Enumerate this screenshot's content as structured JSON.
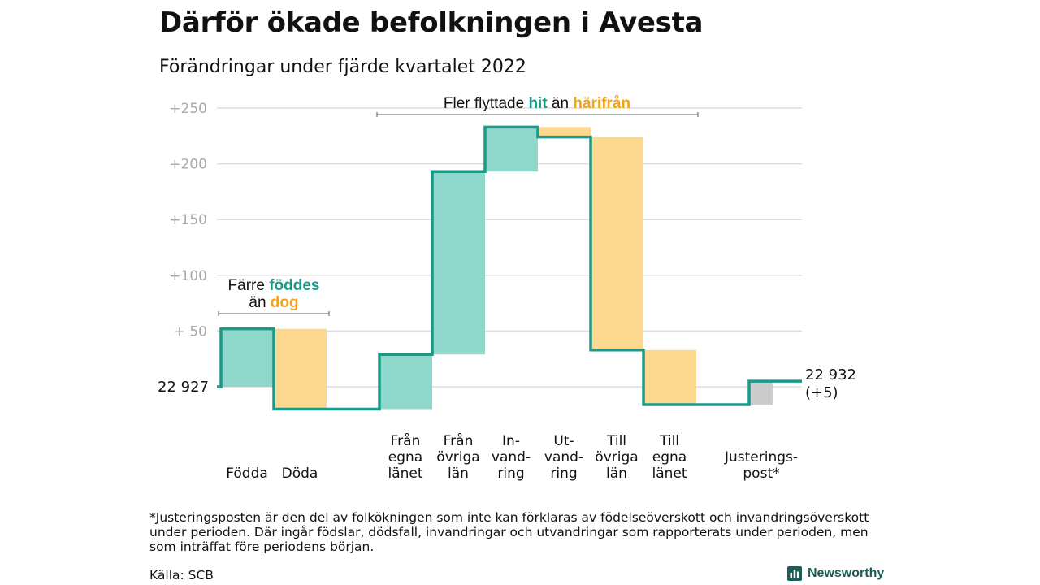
{
  "title": "Därför ökade befolkningen i Avesta",
  "subtitle": "Förändringar under fjärde kvartalet 2022",
  "colors": {
    "inflow": "#8fd6cb",
    "outflow": "#fcd88e",
    "adjust": "#cccccc",
    "line": "#1a9a88",
    "teal_text": "#1a9a88",
    "orange_text": "#f2a31a",
    "grid": "#dddddd",
    "tick": "#a8a8a8"
  },
  "chart_data": {
    "type": "waterfall",
    "start": {
      "label": "22 927",
      "value": 22927
    },
    "end": {
      "label_line1": "22 932",
      "label_line2": "(+5)",
      "value": 22932
    },
    "y_ticks": [
      "+250",
      "+200",
      "+150",
      "+100",
      "+ 50"
    ],
    "y_tick_values": [
      250,
      200,
      150,
      100,
      50
    ],
    "ylim": [
      -25,
      255
    ],
    "steps": [
      {
        "label_lines": [
          "Födda"
        ],
        "from": 0,
        "to": 52,
        "kind": "inflow"
      },
      {
        "label_lines": [
          "Döda"
        ],
        "from": 52,
        "to": -20,
        "kind": "outflow"
      },
      {
        "label_lines": [
          "Från",
          "egna",
          "länet"
        ],
        "from": -20,
        "to": 29,
        "kind": "inflow"
      },
      {
        "label_lines": [
          "Från",
          "övriga",
          "län"
        ],
        "from": 29,
        "to": 193,
        "kind": "inflow"
      },
      {
        "label_lines": [
          "In-",
          "vand-",
          "ring"
        ],
        "from": 193,
        "to": 233,
        "kind": "inflow"
      },
      {
        "label_lines": [
          "Ut-",
          "vand-",
          "ring"
        ],
        "from": 233,
        "to": 224,
        "kind": "outflow"
      },
      {
        "label_lines": [
          "Till",
          "övriga",
          "län"
        ],
        "from": 224,
        "to": 33,
        "kind": "outflow"
      },
      {
        "label_lines": [
          "Till",
          "egna",
          "länet"
        ],
        "from": 33,
        "to": -16,
        "kind": "outflow"
      },
      {
        "label_lines": [
          "Justerings-",
          "post*"
        ],
        "from": -16,
        "to": 5,
        "kind": "adjust"
      }
    ],
    "annotations": {
      "natural": {
        "part1": "Färre ",
        "part2": "föddes",
        "part3": "än ",
        "part4": "dog"
      },
      "migration": {
        "part1": "Fler flyttade ",
        "part2": "hit",
        "part3": " än ",
        "part4": "härifrån"
      }
    }
  },
  "footnote": "*Justeringsposten är den del av folkökningen som inte kan förklaras av födelseöverskott och invandringsöverskott under perioden. Där ingår födslar, dödsfall, invandringar och utvandringar som rapporterats under perioden, men som inträffat före periodens början.",
  "source": "Källa: SCB",
  "brand": "Newsworthy"
}
